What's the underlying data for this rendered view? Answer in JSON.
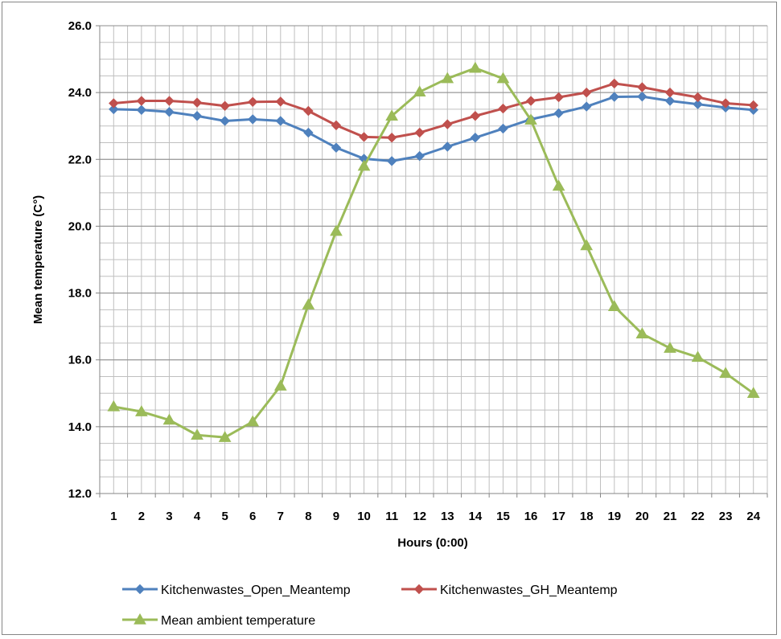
{
  "chart_data": {
    "type": "line",
    "title": "",
    "xlabel": "Hours (0:00)",
    "ylabel": "Mean temperature (C°)",
    "x": [
      1,
      2,
      3,
      4,
      5,
      6,
      7,
      8,
      9,
      10,
      11,
      12,
      13,
      14,
      15,
      16,
      17,
      18,
      19,
      20,
      21,
      22,
      23,
      24
    ],
    "ylim": [
      12.0,
      26.0
    ],
    "yticks": [
      "12.0",
      "14.0",
      "16.0",
      "18.0",
      "20.0",
      "22.0",
      "24.0",
      "26.0"
    ],
    "grid": true,
    "legend_position": "bottom",
    "series": [
      {
        "name": "Kitchenwastes_Open_Meantemp",
        "color": "#4F81BD",
        "marker": "diamond",
        "values": [
          23.5,
          23.48,
          23.42,
          23.3,
          23.15,
          23.2,
          23.15,
          22.8,
          22.35,
          22.02,
          21.95,
          22.1,
          22.38,
          22.65,
          22.92,
          23.2,
          23.38,
          23.58,
          23.87,
          23.88,
          23.75,
          23.65,
          23.55,
          23.48
        ]
      },
      {
        "name": "Kitchenwastes_GH_Meantemp",
        "color": "#C0504D",
        "marker": "diamond",
        "values": [
          23.68,
          23.75,
          23.75,
          23.7,
          23.6,
          23.72,
          23.73,
          23.45,
          23.02,
          22.67,
          22.65,
          22.8,
          23.05,
          23.3,
          23.52,
          23.75,
          23.86,
          24.0,
          24.27,
          24.16,
          24.0,
          23.86,
          23.68,
          23.62
        ]
      },
      {
        "name": "Mean ambient temperature",
        "color": "#9BBB59",
        "marker": "triangle",
        "values": [
          14.6,
          14.45,
          14.2,
          13.75,
          13.68,
          14.15,
          15.22,
          17.65,
          19.85,
          21.8,
          23.3,
          24.02,
          24.42,
          24.73,
          24.42,
          23.18,
          21.2,
          19.42,
          17.6,
          16.78,
          16.35,
          16.08,
          15.6,
          15.0
        ]
      }
    ]
  }
}
